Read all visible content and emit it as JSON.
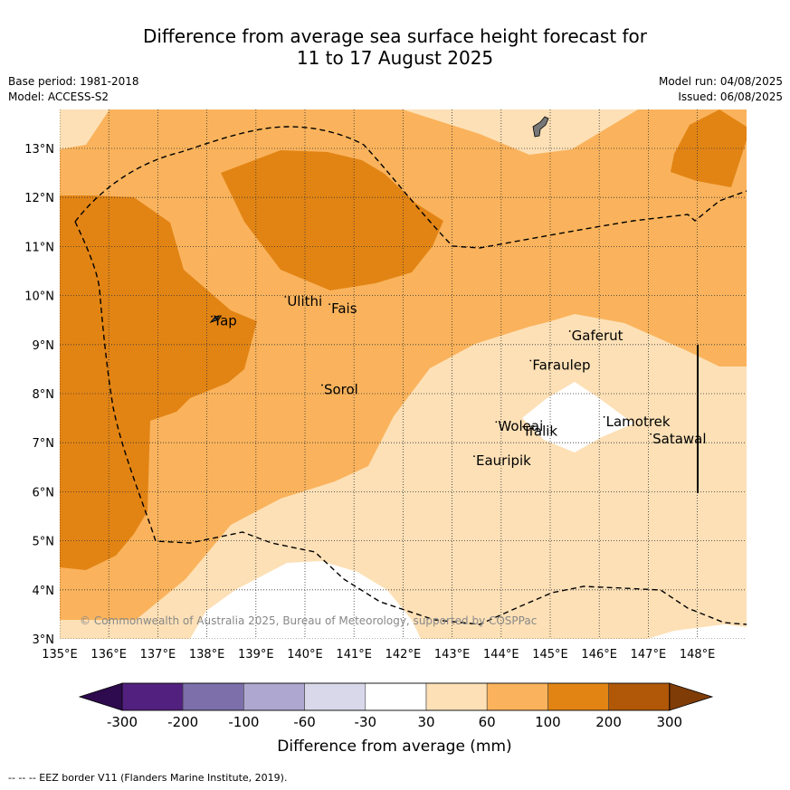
{
  "title": {
    "line1": "Difference from average sea surface height forecast for",
    "line2": "11 to 17 August 2025"
  },
  "meta_left": {
    "base_period": "Base period: 1981-2018",
    "model": "Model: ACCESS-S2"
  },
  "meta_right": {
    "model_run": "Model run: 04/08/2025",
    "issued": "Issued: 06/08/2025"
  },
  "map": {
    "lon_range": [
      135,
      149
    ],
    "lat_range": [
      3,
      13.8
    ],
    "lon_ticks": [
      "135°E",
      "136°E",
      "137°E",
      "138°E",
      "139°E",
      "140°E",
      "141°E",
      "142°E",
      "143°E",
      "144°E",
      "145°E",
      "146°E",
      "147°E",
      "148°E"
    ],
    "lat_ticks": [
      "3°N",
      "4°N",
      "5°N",
      "6°N",
      "7°N",
      "8°N",
      "9°N",
      "10°N",
      "11°N",
      "12°N",
      "13°N"
    ],
    "places": [
      {
        "name": "Yap",
        "lon": 138.1,
        "lat": 9.5
      },
      {
        "name": "Ulithi",
        "lon": 139.6,
        "lat": 9.9
      },
      {
        "name": "Fais",
        "lon": 140.5,
        "lat": 9.75
      },
      {
        "name": "Sorol",
        "lon": 140.35,
        "lat": 8.1
      },
      {
        "name": "Gaferut",
        "lon": 145.4,
        "lat": 9.2
      },
      {
        "name": "Faraulep",
        "lon": 144.6,
        "lat": 8.6
      },
      {
        "name": "Woleai",
        "lon": 143.9,
        "lat": 7.35
      },
      {
        "name": "Ifalik",
        "lon": 144.45,
        "lat": 7.25
      },
      {
        "name": "Lamotrek",
        "lon": 146.1,
        "lat": 7.45
      },
      {
        "name": "Satawal",
        "lon": 147.05,
        "lat": 7.1
      },
      {
        "name": "Eauripik",
        "lon": 143.45,
        "lat": 6.65
      }
    ],
    "credit": "© Commonwealth of Australia 2025, Bureau of Meteorology, supported by COSPPac"
  },
  "colorbar": {
    "labels": [
      "-300",
      "-200",
      "-100",
      "-60",
      "-30",
      "30",
      "60",
      "100",
      "200",
      "300"
    ],
    "colors": [
      "#52207f",
      "#7c6faa",
      "#aea7cf",
      "#d8d8ea",
      "#ffffff",
      "#fde0b6",
      "#fab35c",
      "#e28414",
      "#b05807"
    ],
    "under_color": "#2e0a4e",
    "over_color": "#7f3c07",
    "label": "Difference from average (mm)"
  },
  "footnote": "--  --  -- EEZ border V11 (Flanders Marine Institute, 2019)."
}
